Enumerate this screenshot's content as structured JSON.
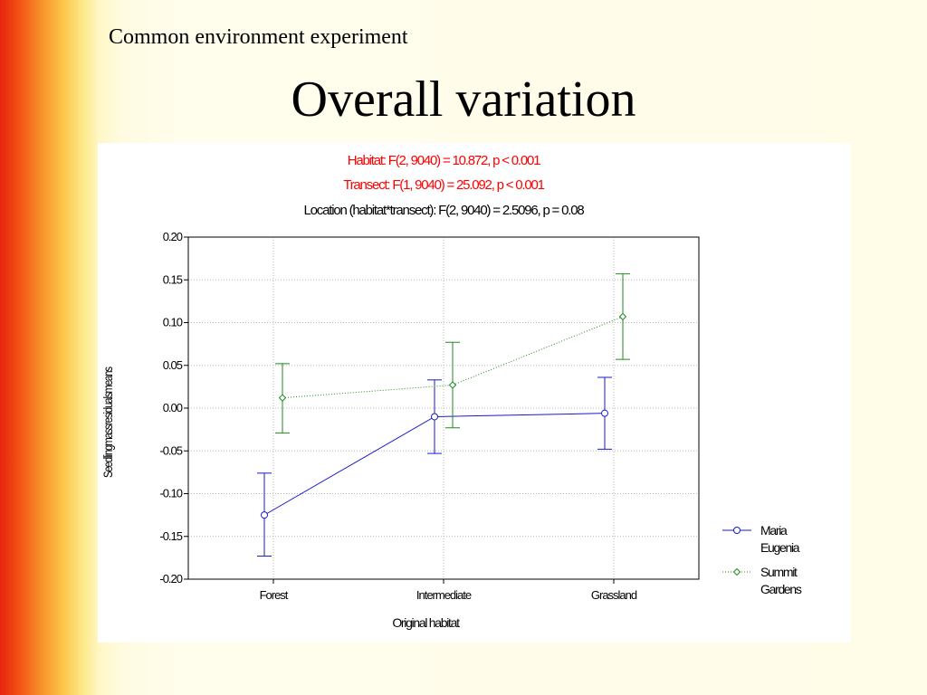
{
  "slide": {
    "subtitle": "Common environment experiment",
    "title": "Overall variation"
  },
  "chart_data": {
    "type": "line",
    "annotations": [
      {
        "text": "Habitat: F(2, 9040) = 10.872, p < 0.001",
        "color": "#ff0000"
      },
      {
        "text": "Transect: F(1, 9040) = 25.092, p < 0.001",
        "color": "#ff0000"
      },
      {
        "text": "Location (habitat*transect): F(2, 9040) = 2.5096, p = 0.08",
        "color": "#000000"
      }
    ],
    "xlabel": "Original habitat",
    "ylabel": "Seedlingmassresidualsmeans",
    "categories": [
      "Forest",
      "Intermediate",
      "Grassland"
    ],
    "ylim": [
      -0.2,
      0.2
    ],
    "yticks": [
      "0.20",
      "0.15",
      "0.10",
      "0.05",
      "0.00",
      "-0.05",
      "-0.10",
      "-0.15",
      "-0.20"
    ],
    "grid": true,
    "legend_position": "right",
    "series": [
      {
        "name": "Maria Eugenia",
        "legend_lines": [
          "Maria",
          "Eugenia"
        ],
        "color": "#1a1acc",
        "marker": "circle",
        "line_style": "solid",
        "values": [
          -0.125,
          -0.01,
          -0.006
        ],
        "err_low": [
          -0.173,
          -0.053,
          -0.048
        ],
        "err_high": [
          -0.076,
          0.033,
          0.036
        ]
      },
      {
        "name": "Summit Gardens",
        "legend_lines": [
          "Summit",
          "Gardens"
        ],
        "color": "#1f8a1f",
        "marker": "diamond",
        "line_style": "dotted",
        "values": [
          0.012,
          0.027,
          0.107
        ],
        "err_low": [
          -0.029,
          -0.023,
          0.057
        ],
        "err_high": [
          0.052,
          0.077,
          0.157
        ]
      }
    ]
  }
}
